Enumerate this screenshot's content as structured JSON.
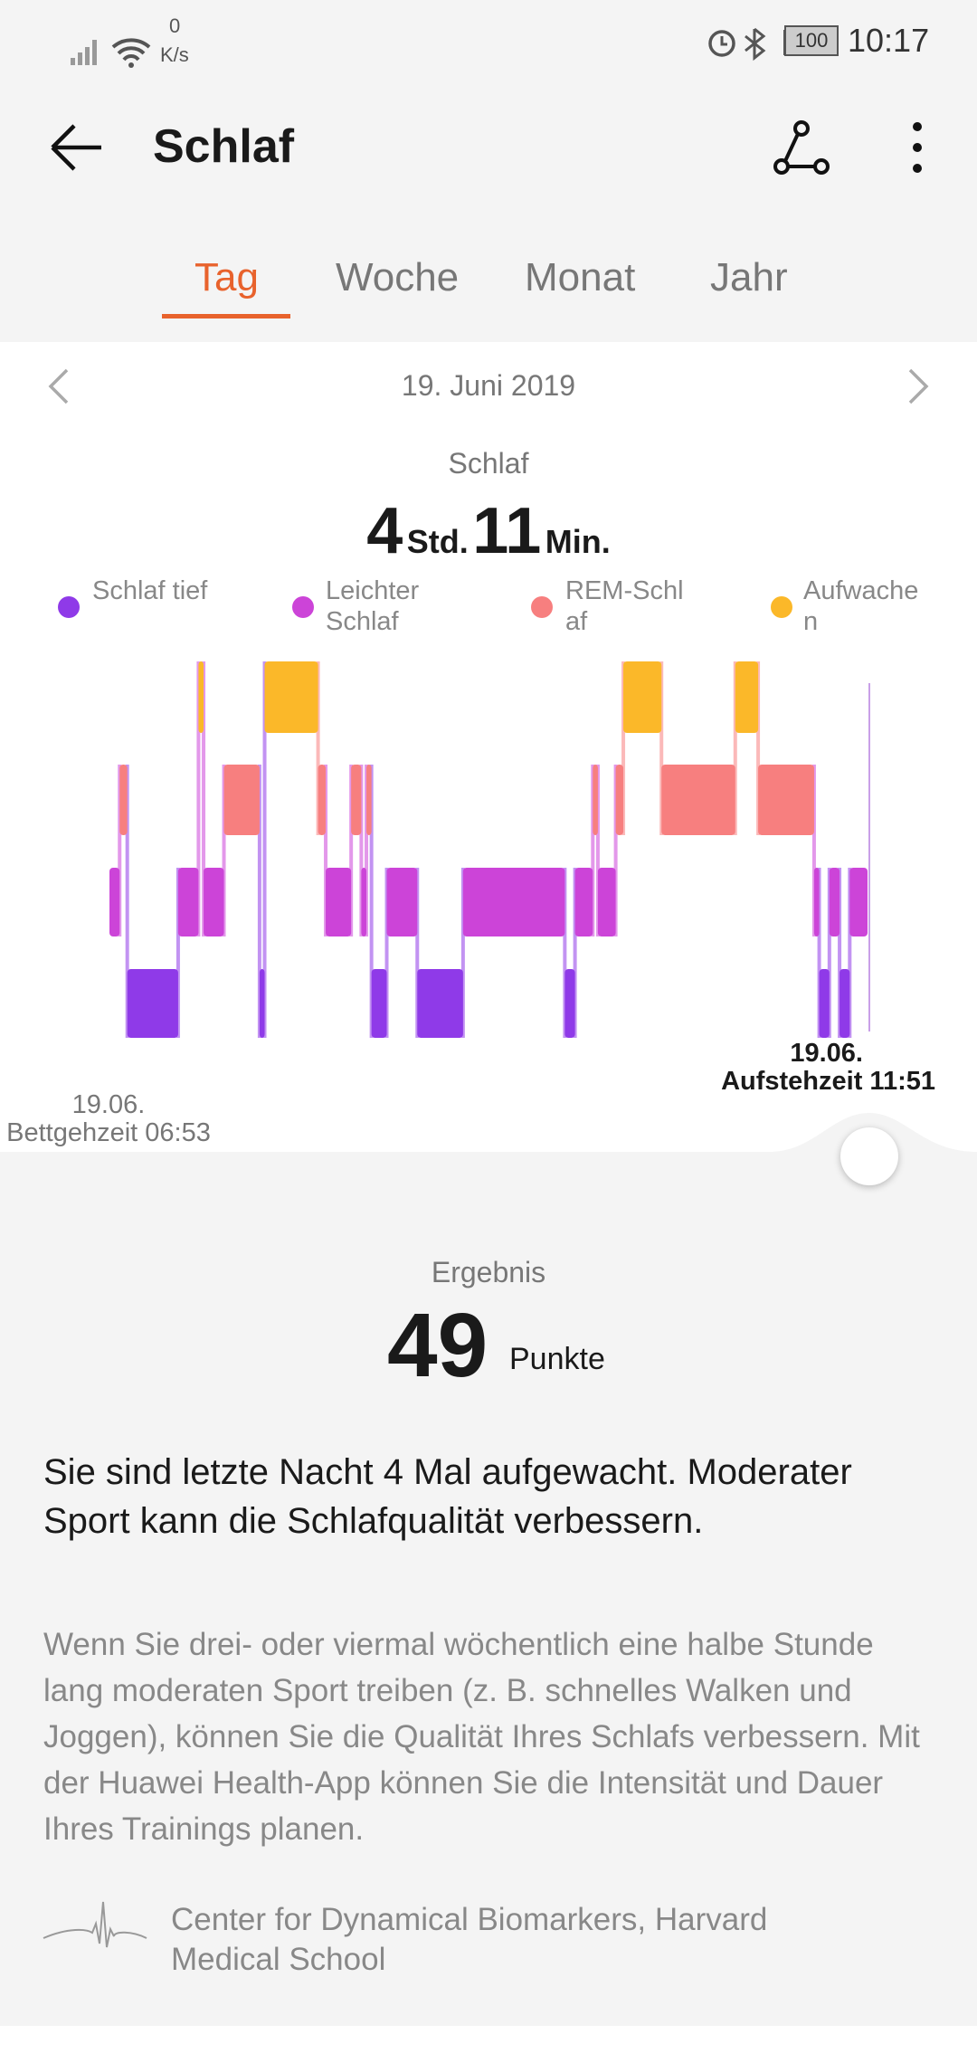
{
  "status_bar": {
    "net_speed": "0",
    "net_unit": "K/s",
    "battery": "100",
    "time": "10:17"
  },
  "header": {
    "title": "Schlaf"
  },
  "tabs": [
    "Tag",
    "Woche",
    "Monat",
    "Jahr"
  ],
  "date": "19. Juni 2019",
  "summary": {
    "label": "Schlaf",
    "hours": "4",
    "hours_unit": "Std.",
    "minutes": "11",
    "minutes_unit": "Min."
  },
  "chart_data": {
    "type": "hypnogram",
    "series": [
      {
        "name": "Schlaf tief",
        "color": "#8f3ae8",
        "intervals": [
          [
            7,
            27
          ],
          [
            59,
            61
          ],
          [
            103,
            109
          ],
          [
            121,
            139
          ],
          [
            179,
            183
          ],
          [
            279,
            283
          ],
          [
            287,
            291
          ]
        ]
      },
      {
        "name": "Leichter Schlaf",
        "color": "#cc44d8",
        "intervals": [
          [
            0,
            4
          ],
          [
            27,
            35
          ],
          [
            37,
            45
          ],
          [
            85,
            95
          ],
          [
            99,
            101
          ],
          [
            109,
            121
          ],
          [
            139,
            179
          ],
          [
            183,
            190
          ],
          [
            192,
            199
          ],
          [
            277,
            279
          ],
          [
            283,
            287
          ],
          [
            291,
            298
          ]
        ]
      },
      {
        "name": "REM-Schlaf",
        "color": "#f77f7f",
        "intervals": [
          [
            4,
            7
          ],
          [
            45,
            59
          ],
          [
            82,
            85
          ],
          [
            95,
            99
          ],
          [
            101,
            103
          ],
          [
            190,
            192
          ],
          [
            199,
            202
          ],
          [
            217,
            246
          ],
          [
            255,
            277
          ]
        ]
      },
      {
        "name": "Aufwachen",
        "color": "#fbb829",
        "intervals": [
          [
            35,
            37
          ],
          [
            61,
            82
          ],
          [
            202,
            217
          ],
          [
            246,
            255
          ]
        ]
      }
    ],
    "xlim": [
      0,
      298
    ],
    "start_date": "19.06.",
    "start_label": "Bettgehzeit 06:53",
    "end_date": "19.06.",
    "end_label": "Aufstehzeit 11:51"
  },
  "result": {
    "label": "Ergebnis",
    "score": 49,
    "unit": "Punkte"
  },
  "advice": {
    "title": "Sie sind letzte Nacht 4 Mal aufgewacht. Moderater Sport kann die Schlafqualität verbessern.",
    "body": "Wenn Sie drei- oder viermal wöchentlich eine halbe Stunde lang moderaten Sport treiben (z. B. schnelles Walken und Joggen), können Sie die Qualität Ihres Schlafs verbessern. Mit der Huawei Health-App können Sie die Intensität und Dauer Ihres Trainings planen."
  },
  "source": "Center for Dynamical Biomarkers, Harvard Medical School"
}
